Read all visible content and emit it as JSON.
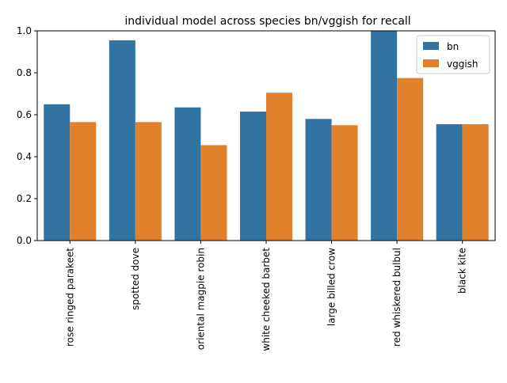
{
  "chart_data": {
    "type": "bar",
    "title": "individual model across species bn/vggish for recall",
    "xlabel": "",
    "ylabel": "",
    "categories": [
      "rose ringed parakeet",
      "spotted dove",
      "oriental magpie robin",
      "white cheeked barbet",
      "large billed crow",
      "red whiskered bulbul",
      "black kite"
    ],
    "series": [
      {
        "name": "bn",
        "color": "#3274a1",
        "values": [
          0.65,
          0.955,
          0.635,
          0.615,
          0.58,
          1.0,
          0.555
        ]
      },
      {
        "name": "vggish",
        "color": "#e1812c",
        "values": [
          0.565,
          0.565,
          0.455,
          0.705,
          0.55,
          0.775,
          0.555
        ]
      }
    ],
    "ylim": [
      0,
      1.0
    ],
    "yticks": [
      "0.0",
      "0.2",
      "0.4",
      "0.6",
      "0.8",
      "1.0"
    ],
    "grid": false,
    "legend_position": "top-right"
  }
}
